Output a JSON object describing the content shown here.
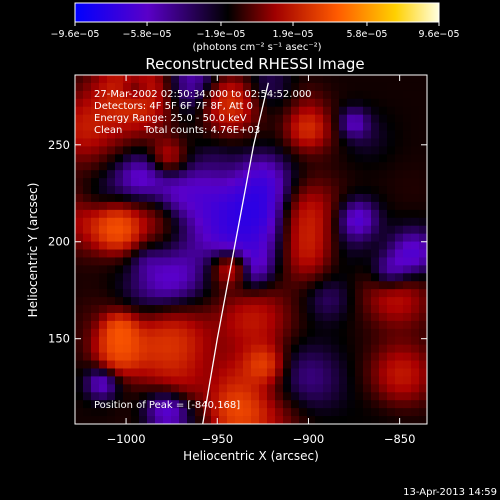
{
  "chart_data": {
    "type": "heatmap",
    "title": "Reconstructed RHESSI Image",
    "xlabel": "Heliocentric X (arcsec)",
    "ylabel": "Heliocentric Y (arcsec)",
    "xlim": [
      -1028,
      -835
    ],
    "ylim": [
      106,
      286
    ],
    "xticks": [
      -1000,
      -950,
      -900,
      -850
    ],
    "xtick_labels": [
      "−1000",
      "−950",
      "−900",
      "−850"
    ],
    "yticks": [
      150,
      200,
      250
    ],
    "ytick_labels": [
      "150",
      "200",
      "250"
    ],
    "colorbar": {
      "range": [
        -9.6e-05,
        9.6e-05
      ],
      "tick_values": [
        -9.6e-05,
        -5.8e-05,
        -1.9e-05,
        1.9e-05,
        5.8e-05,
        9.6e-05
      ],
      "tick_labels": [
        "−9.6e−05",
        "−5.8e−05",
        "−1.9e−05",
        "1.9e−05",
        "5.8e−05",
        "9.6e−05"
      ],
      "unit_label": "(photons cm⁻² s⁻¹ asec⁻²)",
      "colors": [
        "#0000ff",
        "#6a00c8",
        "#000000",
        "#b00000",
        "#ff5a00",
        "#ffd000",
        "#ffffe0"
      ]
    },
    "annotations": {
      "time_range": "27-Mar-2002 02:50:34.000 to 02:54:52.000",
      "detectors": "Detectors: 4F 5F 6F 7F 8F, Att 0",
      "energy": "Energy Range: 25.0 - 50.0 keV",
      "clean": "Clean",
      "counts": "Total counts: 4.76E+03",
      "peak": "Position of Peak = [-840,168]"
    },
    "limb_curve": [
      [
        -958,
        106
      ],
      [
        -950,
        150
      ],
      [
        -940,
        200
      ],
      [
        -930,
        250
      ],
      [
        -922,
        282
      ]
    ],
    "footer": "13-Apr-2013 14:59"
  }
}
